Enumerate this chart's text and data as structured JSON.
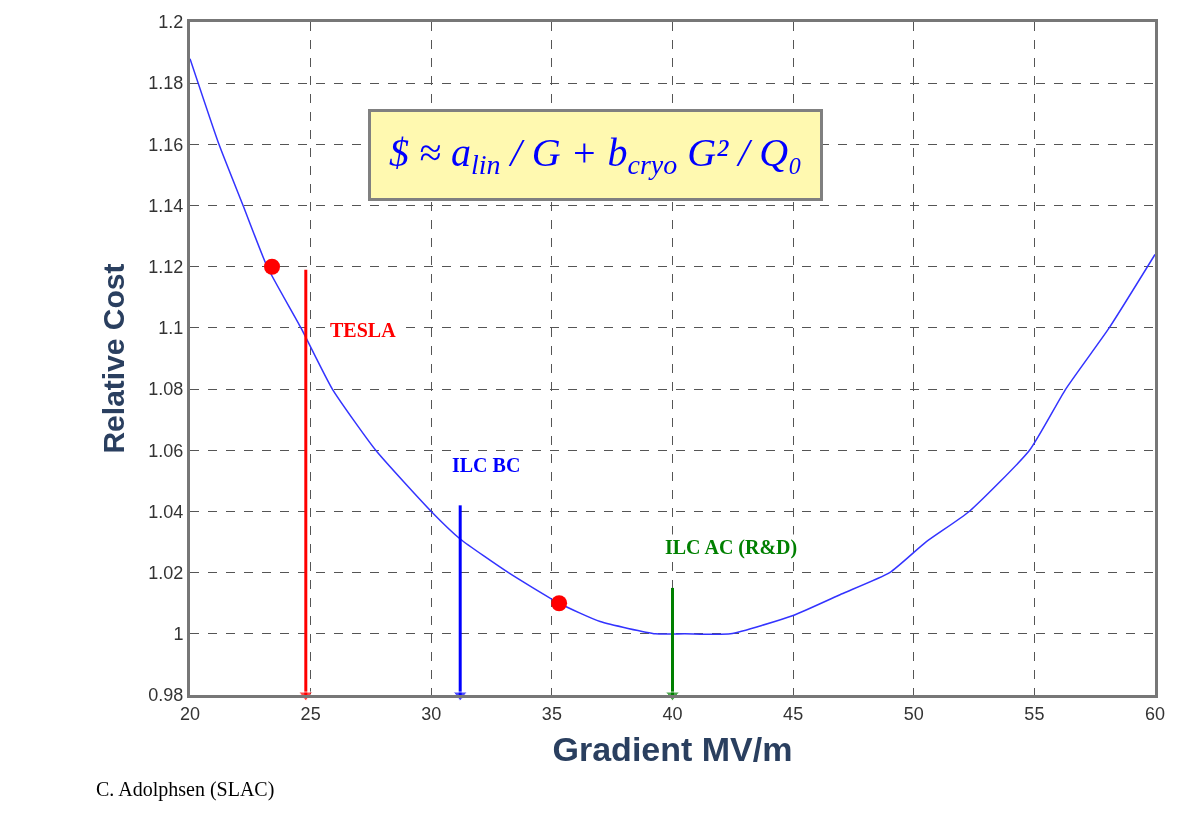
{
  "chart_data": {
    "type": "line",
    "xlabel": "Gradient MV/m",
    "ylabel": "Relative Cost",
    "xlim": [
      20,
      60
    ],
    "xticks": [
      20,
      25,
      30,
      35,
      40,
      45,
      50,
      55,
      60
    ],
    "ylim": [
      0.98,
      1.2
    ],
    "yticks": [
      0.98,
      1,
      1.02,
      1.04,
      1.06,
      1.08,
      1.1,
      1.12,
      1.14,
      1.16,
      1.18,
      1.2
    ],
    "grid": true,
    "legend": false,
    "series": [
      {
        "color": "#3333ff",
        "marker": "none",
        "x": [
          20,
          21.2,
          22.2,
          23.2,
          24.6,
          25.9,
          27.7,
          30,
          31.2,
          33.2,
          35.3,
          37,
          39.3,
          40.5,
          42.4,
          45,
          47,
          49,
          50.5,
          52.3,
          54.8,
          56.3,
          58.1,
          60
        ],
        "values": [
          1.188,
          1.16,
          1.14,
          1.12,
          1.1,
          1.08,
          1.06,
          1.04,
          1.031,
          1.02,
          1.01,
          1.004,
          1.0,
          1.0,
          1.0,
          1.006,
          1.013,
          1.02,
          1.03,
          1.04,
          1.06,
          1.08,
          1.1,
          1.124
        ]
      },
      {
        "type": "scatter",
        "color": "#ff0000",
        "marker": "circle",
        "x": [
          23.4,
          35.3
        ],
        "values": [
          1.12,
          1.01
        ]
      },
      {
        "name": "TESLA",
        "color": "#ff0000",
        "marker": "triangle",
        "x": [
          24.8,
          24.8
        ],
        "values": [
          1.119,
          0.98
        ]
      },
      {
        "name": "ILC BC",
        "color": "#0000ff",
        "marker": "triangle",
        "x": [
          31.2,
          31.2
        ],
        "values": [
          1.042,
          0.98
        ]
      },
      {
        "name": "ILC AC (R&D)",
        "color": "#008000",
        "marker": "triangle",
        "x": [
          40,
          40
        ],
        "values": [
          1.015,
          0.98
        ]
      }
    ],
    "annotations": [
      "$ ≈ a$_{lin}$ / G + b$_{cryo}$ G² / Q₀",
      "C. Adolphsen (SLAC)"
    ]
  }
}
